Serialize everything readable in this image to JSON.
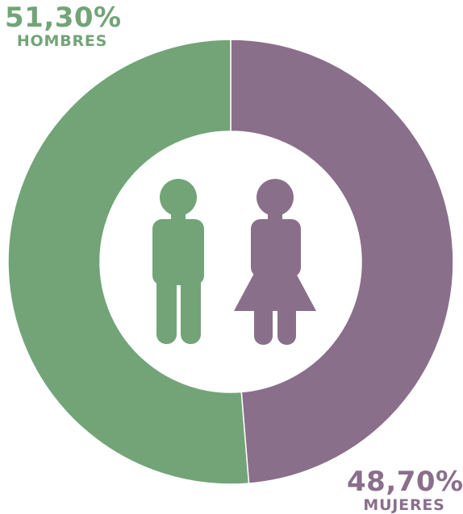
{
  "chart_data": {
    "type": "pie",
    "donut": true,
    "categories": [
      "HOMBRES",
      "MUJERES"
    ],
    "values": [
      51.3,
      48.7
    ],
    "value_labels": [
      "51,30%",
      "48,70%"
    ],
    "colors": [
      "#72a478",
      "#8a6f8b"
    ]
  },
  "icons": {
    "man": "man-figure-icon",
    "woman": "woman-figure-icon"
  },
  "colors": {
    "men": "#72a478",
    "women": "#8a6f8b",
    "background": "#ffffff"
  }
}
